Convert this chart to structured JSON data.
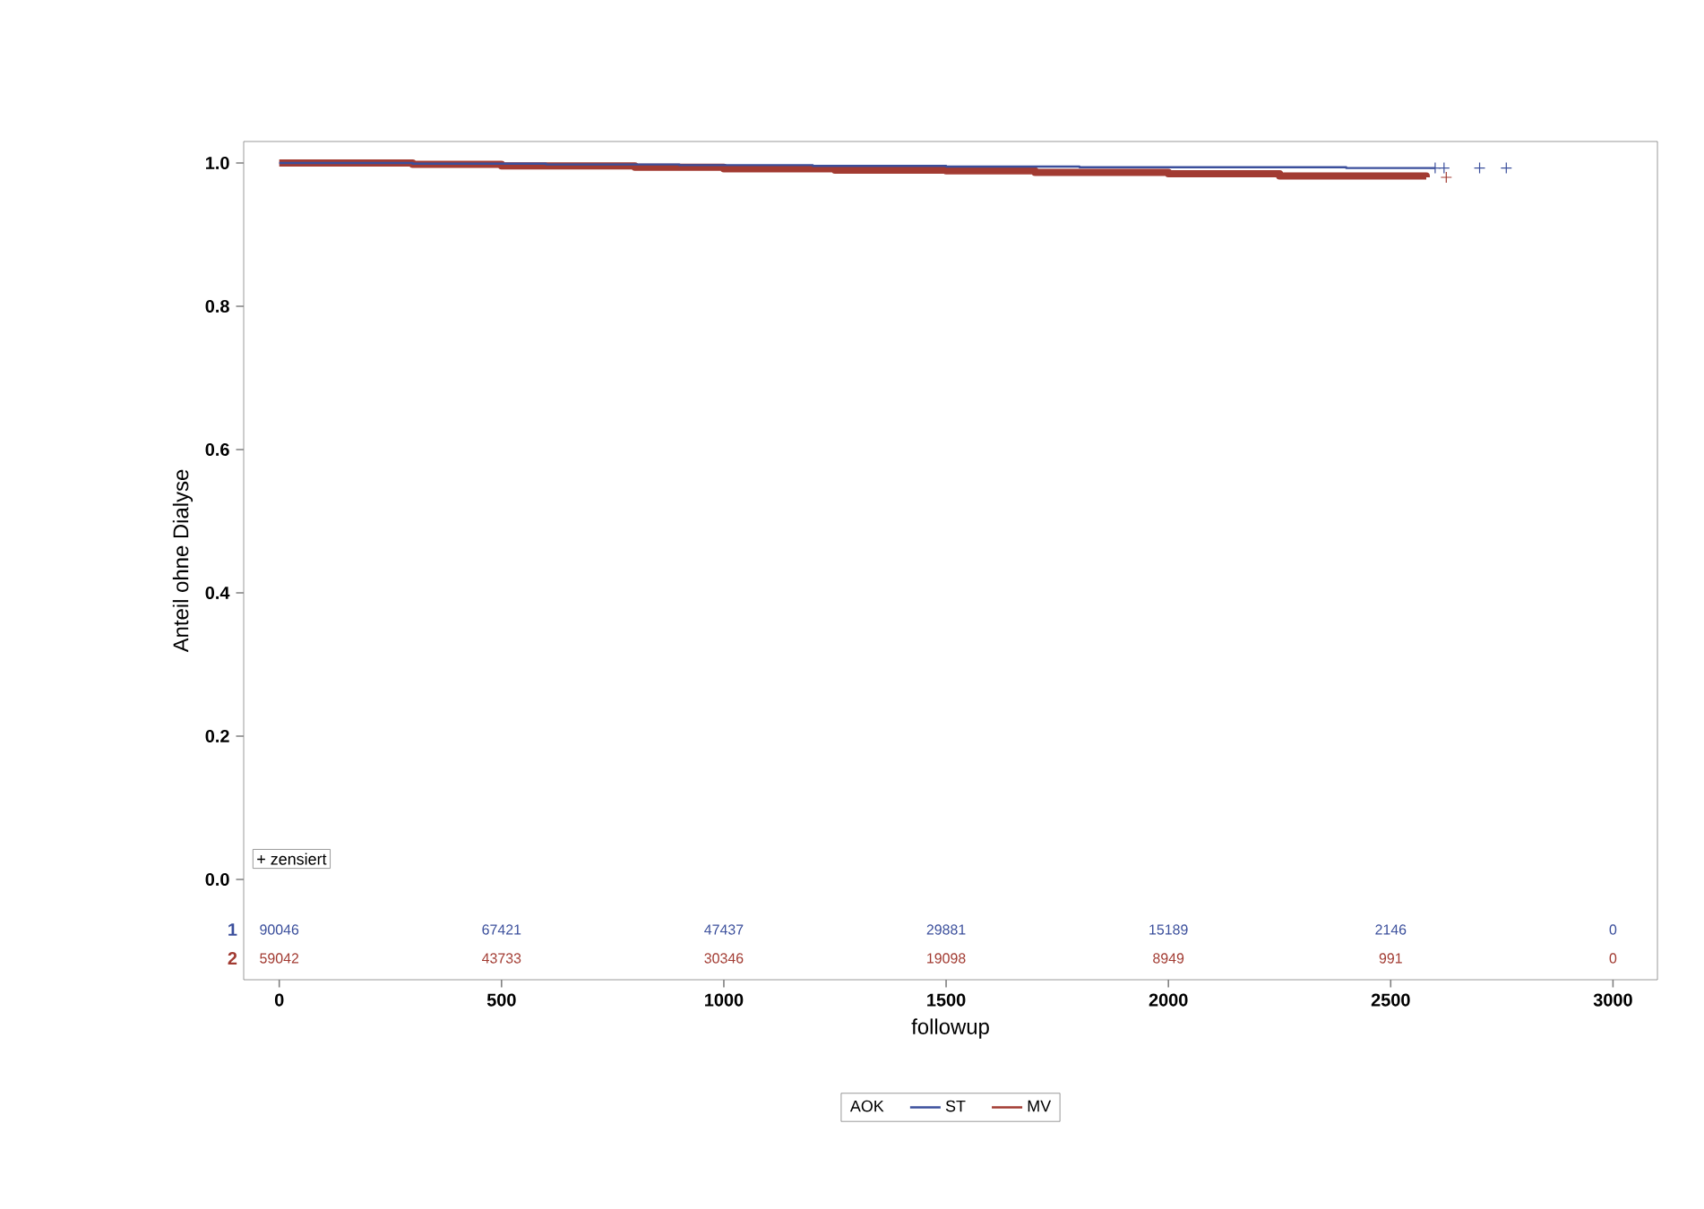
{
  "chart_data": {
    "type": "step",
    "xlabel": "followup",
    "ylabel": "Anteil ohne Dialyse",
    "legend_title": "AOK",
    "xlim": [
      -80,
      3100
    ],
    "ylim": [
      -0.14,
      1.03
    ],
    "xticks": [
      0,
      500,
      1000,
      1500,
      2000,
      2500,
      3000
    ],
    "yticks": [
      {
        "value": 0,
        "label": "0.0"
      },
      {
        "value": 0.2,
        "label": "0.2"
      },
      {
        "value": 0.4,
        "label": "0.4"
      },
      {
        "value": 0.6,
        "label": "0.6"
      },
      {
        "value": 0.8,
        "label": "0.8"
      },
      {
        "value": 1.0,
        "label": "1.0"
      }
    ],
    "legend": "bottom",
    "series": [
      {
        "name": "ST",
        "color": "#3b4f9c",
        "x": [
          0,
          300,
          600,
          900,
          1200,
          1500,
          1800,
          2100,
          2400,
          2600
        ],
        "values": [
          1.0,
          0.999,
          0.998,
          0.997,
          0.996,
          0.995,
          0.994,
          0.994,
          0.993,
          0.993
        ]
      },
      {
        "name": "MV",
        "color": "#a23b32",
        "x": [
          0,
          300,
          500,
          800,
          1000,
          1250,
          1500,
          1700,
          2000,
          2250,
          2580
        ],
        "values": [
          1.0,
          0.998,
          0.996,
          0.994,
          0.992,
          0.99,
          0.989,
          0.987,
          0.985,
          0.982,
          0.98
        ]
      },
      {
        "type": "scatter",
        "marker": "cross",
        "color": "#3b4f9c",
        "x": [
          2600,
          2620,
          2700,
          2760
        ],
        "values": [
          0.993,
          0.993,
          0.993,
          0.993
        ]
      },
      {
        "type": "scatter",
        "marker": "cross",
        "color": "#a23b32",
        "x": [
          2625
        ],
        "values": [
          0.98
        ]
      }
    ],
    "annotations": [
      "+ zensiert",
      "1",
      "2",
      "90046",
      "67421",
      "47437",
      "29881",
      "15189",
      "2146",
      "0",
      "59042",
      "43733",
      "30346",
      "19098",
      "8949",
      "991",
      "0"
    ]
  }
}
